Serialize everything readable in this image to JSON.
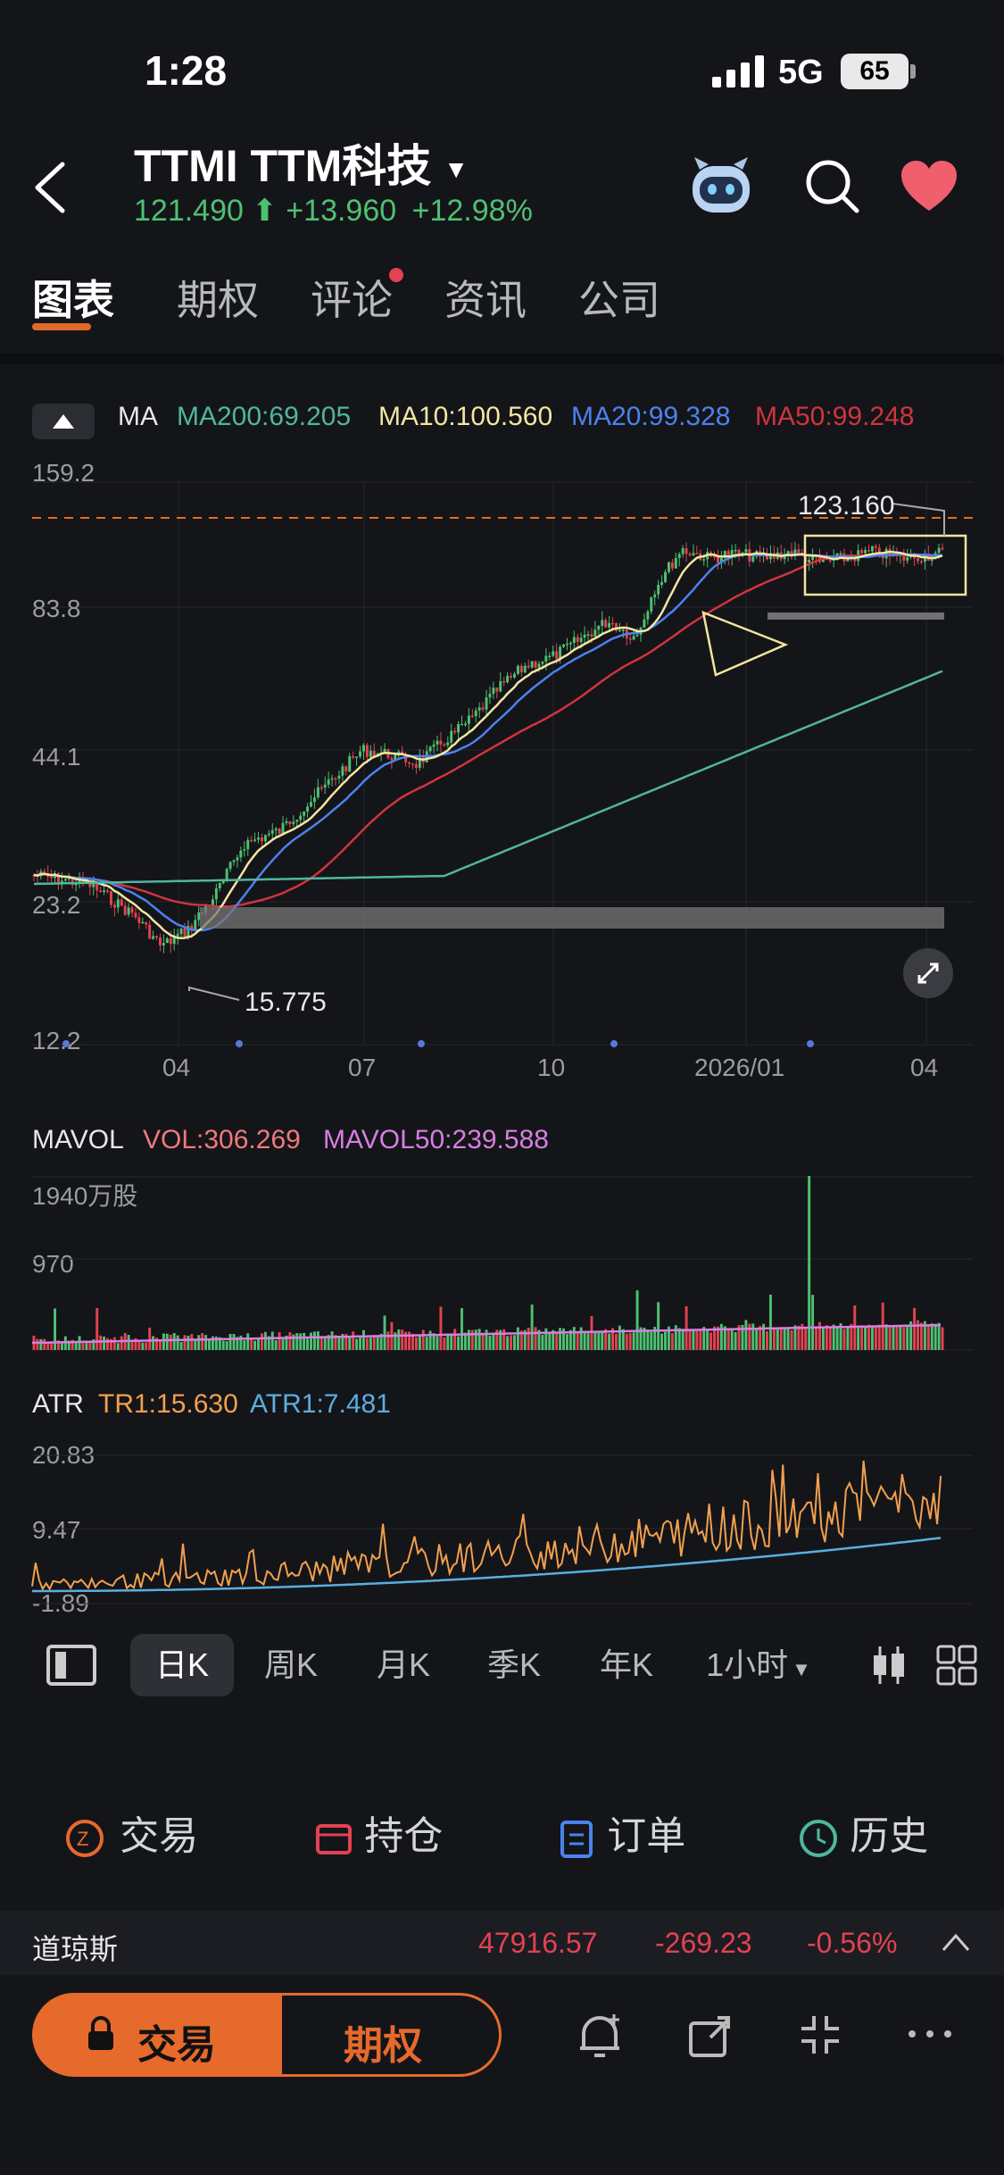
{
  "status_bar": {
    "time": "1:28",
    "network": "5G",
    "battery": "65"
  },
  "header": {
    "title": "TTMI  TTM科技",
    "price": "121.490",
    "change": "+13.960",
    "change_pct": "+12.98%"
  },
  "tabs": [
    "图表",
    "期权",
    "评论",
    "资讯",
    "公司"
  ],
  "chart": {
    "ma_label": "MA",
    "ma200": "MA200:69.205",
    "ma10": "MA10:100.560",
    "ma20": "MA20:99.328",
    "ma50": "MA50:99.248",
    "y_ticks": [
      "159.2",
      "83.8",
      "44.1",
      "23.2",
      "12.2"
    ],
    "x_ticks": [
      "04",
      "07",
      "10",
      "2026/01",
      "04"
    ],
    "high_annotation": "123.160",
    "low_annotation": "15.775"
  },
  "volume_panel": {
    "label": "MAVOL",
    "vol": "VOL:306.269",
    "mavol50": "MAVOL50:239.588",
    "y_ticks": [
      "1940万股",
      "970"
    ]
  },
  "atr_panel": {
    "label": "ATR",
    "tr1": "TR1:15.630",
    "atr1": "ATR1:7.481",
    "y_ticks": [
      "20.83",
      "9.47",
      "-1.89"
    ]
  },
  "periods": [
    "日K",
    "周K",
    "月K",
    "季K",
    "年K",
    "1小时"
  ],
  "actions": [
    "交易",
    "持仓",
    "订单",
    "历史"
  ],
  "ticker": {
    "name": "道琼斯",
    "value": "47916.57",
    "change": "-269.23",
    "change_pct": "-0.56%"
  },
  "bottom": {
    "trade": "交易",
    "options": "期权"
  },
  "colors": {
    "accent": "#e66a2c",
    "up": "#4fc072",
    "down": "#e34252",
    "ma200": "#4fb6a0",
    "ma10": "#f3e5a0",
    "ma20": "#4b82ee",
    "ma50": "#d0343e"
  }
}
